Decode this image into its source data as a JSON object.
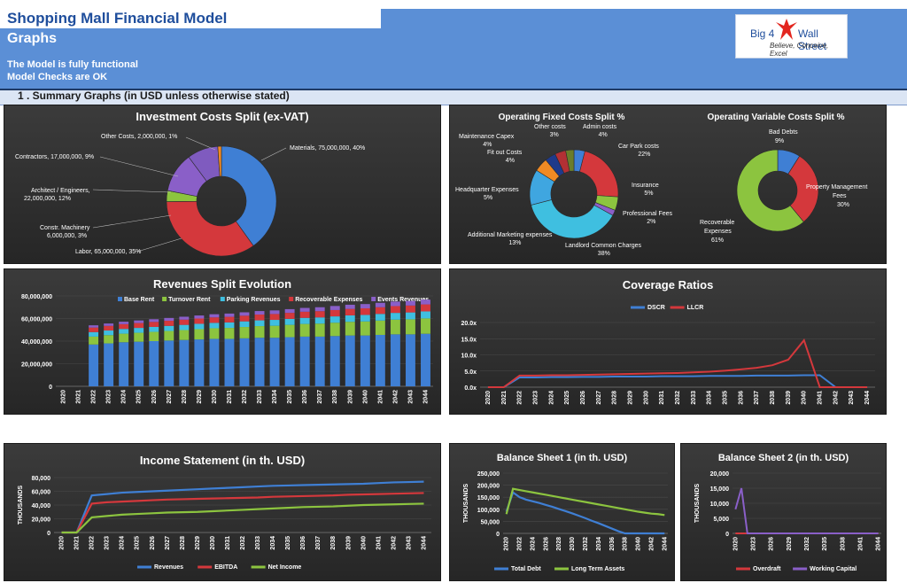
{
  "header": {
    "title": "Shopping Mall Financial Model",
    "subtitle": "Graphs",
    "status_1": "The Model is fully functional",
    "status_2": "Model Checks are OK",
    "section": "1 .  Summary Graphs (in USD unless otherwise stated)"
  },
  "logo": {
    "big": "Big 4",
    "ws": "Wall Street",
    "tagline": "Believe, Conceive, Excel",
    "bird_color": "#e3261f"
  },
  "colors": {
    "blue": "#3f7fd4",
    "red": "#d4383c",
    "green": "#8cc43f",
    "cyan": "#3fbfe0",
    "purple": "#8a5fc8",
    "orange": "#f08a24",
    "navy": "#1f3a8a",
    "olive": "#6b7d2a",
    "gray": "#8f8f8f"
  },
  "charts": {
    "investment": {
      "title": "Investment Costs Split (ex-VAT)",
      "chart_data": {
        "type": "pie",
        "slices": [
          {
            "label": "Materials, 75,000,000, 40%",
            "value": 75000000
          },
          {
            "label": "Labor, 65,000,000, 35%",
            "value": 65000000
          },
          {
            "label": "Constr. Machinery, 6,000,000, 3%",
            "value": 6000000
          },
          {
            "label": "Architect / Engineers, 22,000,000, 12%",
            "value": 22000000
          },
          {
            "label": "Contractors, 17,000,000, 9%",
            "value": 17000000
          },
          {
            "label": "Other Costs, 2,000,000, 1%",
            "value": 2000000
          }
        ]
      }
    },
    "fixed_costs": {
      "title": "Operating Fixed Costs Split %",
      "chart_data": {
        "type": "pie",
        "slices": [
          {
            "name": "Admin costs",
            "pct": "4%",
            "value": 4
          },
          {
            "name": "Car Park costs",
            "pct": "22%",
            "value": 22
          },
          {
            "name": "Insurance",
            "pct": "5%",
            "value": 5
          },
          {
            "name": "Professional Fees",
            "pct": "2%",
            "value": 2
          },
          {
            "name": "Landlord Common Charges",
            "pct": "38%",
            "value": 38
          },
          {
            "name": "Additional Marketing expenses",
            "pct": "13%",
            "value": 13
          },
          {
            "name": "Headquarter Expenses",
            "pct": "5%",
            "value": 5
          },
          {
            "name": "Fit out Costs",
            "pct": "4%",
            "value": 4
          },
          {
            "name": "Maintenance Capex",
            "pct": "4%",
            "value": 4
          },
          {
            "name": "Other costs",
            "pct": "3%",
            "value": 3
          }
        ]
      }
    },
    "variable_costs": {
      "title": "Operating Variable Costs Split %",
      "chart_data": {
        "type": "pie",
        "slices": [
          {
            "name": "Bad Debts",
            "pct": "9%",
            "value": 9
          },
          {
            "name": "Property Management Fees",
            "pct": "30%",
            "value": 30
          },
          {
            "name": "Recoverable Expenses",
            "pct": "61%",
            "value": 61
          }
        ]
      }
    },
    "revenues": {
      "title": "Revenues Split Evolution",
      "chart_data": {
        "type": "bar",
        "categories": [
          "2020",
          "2021",
          "2022",
          "2023",
          "2024",
          "2025",
          "2026",
          "2027",
          "2028",
          "2029",
          "2030",
          "2031",
          "2032",
          "2033",
          "2034",
          "2035",
          "2036",
          "2037",
          "2038",
          "2039",
          "2040",
          "2041",
          "2042",
          "2043",
          "2044"
        ],
        "yticks": [
          "0",
          "20,000,000",
          "40,000,000",
          "60,000,000",
          "80,000,000"
        ],
        "ylim": [
          0,
          80000000
        ],
        "series": [
          {
            "name": "Base Rent",
            "values": [
              0,
              0,
              37000000,
              38000000,
              39000000,
              39500000,
              40000000,
              40500000,
              41000000,
              41500000,
              42000000,
              42000000,
              42500000,
              43000000,
              43000000,
              43500000,
              44000000,
              44000000,
              44500000,
              45000000,
              45000000,
              45500000,
              46000000,
              46000000,
              46500000
            ]
          },
          {
            "name": "Turnover Rent",
            "values": [
              0,
              0,
              7000000,
              7300000,
              7600000,
              7900000,
              8200000,
              8500000,
              8800000,
              9100000,
              9400000,
              9700000,
              10000000,
              10300000,
              10600000,
              10900000,
              11200000,
              11500000,
              11800000,
              12100000,
              12400000,
              12700000,
              13000000,
              13300000,
              13600000
            ]
          },
          {
            "name": "Parking Revenues",
            "values": [
              0,
              0,
              4000000,
              4100000,
              4200000,
              4300000,
              4400000,
              4500000,
              4600000,
              4700000,
              4800000,
              4900000,
              5000000,
              5100000,
              5200000,
              5300000,
              5400000,
              5500000,
              5600000,
              5700000,
              5800000,
              5900000,
              6000000,
              6100000,
              6200000
            ]
          },
          {
            "name": "Recoverable Expenses",
            "values": [
              0,
              0,
              4000000,
              4100000,
              4200000,
              4300000,
              4400000,
              4500000,
              4600000,
              4700000,
              4800000,
              4900000,
              5000000,
              5100000,
              5200000,
              5300000,
              5400000,
              5500000,
              5600000,
              5700000,
              5800000,
              5900000,
              6000000,
              6100000,
              6200000
            ]
          },
          {
            "name": "Events Revenues",
            "values": [
              0,
              0,
              2000000,
              2100000,
              2200000,
              2300000,
              2400000,
              2500000,
              2600000,
              2700000,
              2800000,
              2900000,
              3000000,
              3100000,
              3200000,
              3300000,
              3400000,
              3500000,
              3600000,
              3700000,
              3800000,
              3900000,
              4000000,
              4100000,
              4200000
            ]
          }
        ]
      }
    },
    "coverage": {
      "title": "Coverage Ratios",
      "chart_data": {
        "type": "line",
        "categories": [
          "2020",
          "2021",
          "2022",
          "2023",
          "2024",
          "2025",
          "2026",
          "2027",
          "2028",
          "2029",
          "2030",
          "2031",
          "2032",
          "2033",
          "2034",
          "2035",
          "2036",
          "2037",
          "2038",
          "2039",
          "2040",
          "2041",
          "2042",
          "2043",
          "2044"
        ],
        "yticks": [
          "0.0x",
          "5.0x",
          "10.0x",
          "15.0x",
          "20.0x"
        ],
        "ylim": [
          0,
          20
        ],
        "series": [
          {
            "name": "DSCR",
            "values": [
              0,
              0,
              3.0,
              3.0,
              3.1,
              3.1,
              3.2,
              3.2,
              3.3,
              3.3,
              3.3,
              3.4,
              3.4,
              3.4,
              3.5,
              3.5,
              3.5,
              3.6,
              3.6,
              3.6,
              3.7,
              3.7,
              0,
              0,
              0
            ]
          },
          {
            "name": "LLCR",
            "values": [
              0,
              0,
              3.6,
              3.6,
              3.7,
              3.7,
              3.8,
              3.9,
              4.0,
              4.1,
              4.2,
              4.3,
              4.4,
              4.6,
              4.8,
              5.1,
              5.5,
              6.0,
              6.8,
              8.5,
              14.5,
              0,
              0,
              0,
              0
            ]
          }
        ]
      }
    },
    "income": {
      "title": "Income Statement (in th. USD)",
      "ylabel": "THOUSANDS",
      "chart_data": {
        "type": "line",
        "categories": [
          "2020",
          "2021",
          "2022",
          "2023",
          "2024",
          "2025",
          "2026",
          "2027",
          "2028",
          "2029",
          "2030",
          "2031",
          "2032",
          "2033",
          "2034",
          "2035",
          "2036",
          "2037",
          "2038",
          "2039",
          "2040",
          "2041",
          "2042",
          "2043",
          "2044"
        ],
        "yticks": [
          "0",
          "20,000",
          "40,000",
          "60,000",
          "80,000"
        ],
        "ylim": [
          0,
          80000
        ],
        "series": [
          {
            "name": "Revenues",
            "values": [
              0,
              0,
              54000,
              56000,
              58000,
              59000,
              60000,
              61000,
              62000,
              63000,
              64000,
              65000,
              66000,
              67000,
              68000,
              68500,
              69000,
              69500,
              70000,
              70500,
              71000,
              72000,
              73000,
              73500,
              74000
            ]
          },
          {
            "name": "EBITDA",
            "values": [
              0,
              0,
              42000,
              44000,
              45000,
              46000,
              47000,
              48000,
              48500,
              49000,
              49500,
              50000,
              50500,
              51000,
              52000,
              52500,
              53000,
              53500,
              54000,
              55000,
              55500,
              56000,
              56500,
              57000,
              57500
            ]
          },
          {
            "name": "Net Income",
            "values": [
              0,
              0,
              22000,
              24000,
              26000,
              27000,
              28000,
              29000,
              29500,
              30000,
              31000,
              32000,
              33000,
              34000,
              35000,
              36000,
              37000,
              37500,
              38000,
              39000,
              40000,
              40500,
              41000,
              41500,
              42000
            ]
          }
        ]
      }
    },
    "bs1": {
      "title": "Balance Sheet 1 (in th. USD)",
      "ylabel": "THOUSANDS",
      "chart_data": {
        "type": "line",
        "categories": [
          "2020",
          "2021",
          "2022",
          "2023",
          "2024",
          "2025",
          "2026",
          "2027",
          "2028",
          "2029",
          "2030",
          "2031",
          "2032",
          "2033",
          "2034",
          "2035",
          "2036",
          "2037",
          "2038",
          "2039",
          "2040",
          "2041",
          "2042",
          "2043",
          "2044"
        ],
        "xticks": [
          "2020",
          "2022",
          "2024",
          "2026",
          "2028",
          "2030",
          "2032",
          "2034",
          "2036",
          "2038",
          "2040",
          "2042",
          "2044"
        ],
        "yticks": [
          "0",
          "50,000",
          "100,000",
          "150,000",
          "200,000",
          "250,000"
        ],
        "ylim": [
          0,
          250000
        ],
        "series": [
          {
            "name": "Total Debt",
            "values": [
              90000,
              170000,
              150000,
              140000,
              133000,
              126000,
              118000,
              110000,
              101000,
              92000,
              83000,
              73000,
              63000,
              52000,
              42000,
              31000,
              20000,
              9000,
              0,
              0,
              0,
              0,
              0,
              0,
              0
            ]
          },
          {
            "name": "Long Term Assets",
            "values": [
              80000,
              185000,
              180000,
              175000,
              170000,
              165000,
              160000,
              155000,
              150000,
              145000,
              140000,
              135000,
              130000,
              125000,
              120000,
              115000,
              110000,
              105000,
              100000,
              95000,
              90000,
              86000,
              82000,
              80000,
              76000
            ]
          }
        ]
      }
    },
    "bs2": {
      "title": "Balance Sheet 2 (in th. USD)",
      "ylabel": "THOUSANDS",
      "chart_data": {
        "type": "line",
        "categories": [
          "2020",
          "2021",
          "2022",
          "2023",
          "2024",
          "2025",
          "2026",
          "2027",
          "2028",
          "2029",
          "2030",
          "2031",
          "2032",
          "2033",
          "2034",
          "2035",
          "2036",
          "2037",
          "2038",
          "2039",
          "2040",
          "2041",
          "2042",
          "2043",
          "2044"
        ],
        "xticks": [
          "2020",
          "2023",
          "2026",
          "2029",
          "2032",
          "2035",
          "2038",
          "2041",
          "2044"
        ],
        "yticks": [
          "0",
          "5,000",
          "10,000",
          "15,000",
          "20,000"
        ],
        "ylim": [
          0,
          20000
        ],
        "series": [
          {
            "name": "Overdraft",
            "values": [
              0,
              0,
              0,
              0,
              0,
              0,
              0,
              0,
              0,
              0,
              0,
              0,
              0,
              0,
              0,
              0,
              0,
              0,
              0,
              0,
              0,
              0,
              0,
              0,
              0
            ]
          },
          {
            "name": "Working Capital",
            "values": [
              8000,
              15000,
              0,
              0,
              0,
              0,
              0,
              0,
              0,
              0,
              0,
              0,
              0,
              0,
              0,
              0,
              0,
              0,
              0,
              0,
              0,
              0,
              0,
              0,
              0
            ]
          }
        ]
      }
    }
  }
}
